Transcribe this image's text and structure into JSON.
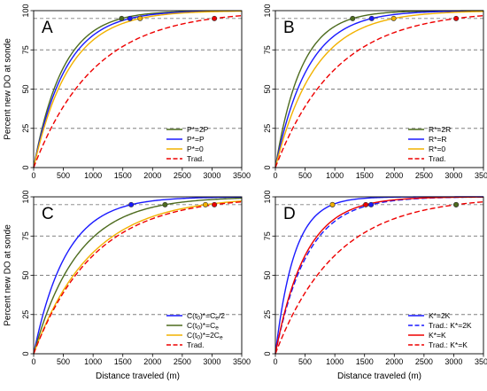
{
  "chart_data": [
    {
      "panel": "A",
      "type": "line",
      "xlabel": "",
      "ylabel": "Percent new DO at sonde",
      "xlim": [
        0,
        3500
      ],
      "ylim": [
        0,
        100
      ],
      "xticks": [
        0,
        500,
        1000,
        1500,
        2000,
        2500,
        3000,
        3500
      ],
      "yticks": [
        0,
        25,
        50,
        75,
        100
      ],
      "hlines": [
        25,
        50,
        75,
        95
      ],
      "grid": false,
      "legend_position": "bottom-right",
      "series": [
        {
          "name": "P*=2P",
          "style": "solid",
          "color": "#4d6b1e",
          "x95": 1480
        },
        {
          "name": "P*=P",
          "style": "solid",
          "color": "#1a1aff",
          "x95": 1620
        },
        {
          "name": "P*=0",
          "style": "solid",
          "color": "#f2b200",
          "x95": 1790
        },
        {
          "name": "Trad.",
          "style": "dashed",
          "color": "#ee0000",
          "x95": 3040
        }
      ]
    },
    {
      "panel": "B",
      "type": "line",
      "xlabel": "",
      "ylabel": "",
      "xlim": [
        0,
        3500
      ],
      "ylim": [
        0,
        100
      ],
      "xticks": [
        0,
        500,
        1000,
        1500,
        2000,
        2500,
        3000,
        3500
      ],
      "yticks": [
        0,
        25,
        50,
        75,
        100
      ],
      "hlines": [
        25,
        50,
        75,
        95
      ],
      "grid": false,
      "legend_position": "bottom-right",
      "series": [
        {
          "name": "R*=2R",
          "style": "solid",
          "color": "#4d6b1e",
          "x95": 1300
        },
        {
          "name": "R*=R",
          "style": "solid",
          "color": "#1a1aff",
          "x95": 1620
        },
        {
          "name": "R*=0",
          "style": "solid",
          "color": "#f2b200",
          "x95": 1990
        },
        {
          "name": "Trad.",
          "style": "dashed",
          "color": "#ee0000",
          "x95": 3040
        }
      ]
    },
    {
      "panel": "C",
      "type": "line",
      "xlabel": "Distance traveled (m)",
      "ylabel": "Percent new DO at sonde",
      "xlim": [
        0,
        3500
      ],
      "ylim": [
        0,
        100
      ],
      "xticks": [
        0,
        500,
        1000,
        1500,
        2000,
        2500,
        3000,
        3500
      ],
      "yticks": [
        0,
        25,
        50,
        75,
        100
      ],
      "hlines": [
        25,
        50,
        75,
        95
      ],
      "grid": false,
      "legend_position": "bottom-right",
      "series": [
        {
          "name": "C(t0)*=Ce/2",
          "legend_parts": [
            "C(t",
            "0",
            ")*=C",
            "e",
            "/2"
          ],
          "style": "solid",
          "color": "#1a1aff",
          "x95": 1640
        },
        {
          "name": "C(t0)*=Ce",
          "legend_parts": [
            "C(t",
            "0",
            ")*=C",
            "e",
            ""
          ],
          "style": "solid",
          "color": "#4d6b1e",
          "x95": 2210
        },
        {
          "name": "C(t0)*=2Ce",
          "legend_parts": [
            "C(t",
            "0",
            ")*=2C",
            "e",
            ""
          ],
          "style": "solid",
          "color": "#f2b200",
          "x95": 2890
        },
        {
          "name": "Trad.",
          "legend_parts": [
            "Trad.",
            "",
            "",
            "",
            ""
          ],
          "style": "dashed",
          "color": "#ee0000",
          "x95": 3040
        }
      ]
    },
    {
      "panel": "D",
      "type": "line",
      "xlabel": "Distance traveled (m)",
      "ylabel": "",
      "xlim": [
        0,
        3500
      ],
      "ylim": [
        0,
        100
      ],
      "xticks": [
        0,
        500,
        1000,
        1500,
        2000,
        2500,
        3000,
        3500
      ],
      "yticks": [
        0,
        25,
        50,
        75,
        100
      ],
      "hlines": [
        25,
        50,
        75,
        95
      ],
      "grid": false,
      "legend_position": "bottom-right",
      "series": [
        {
          "name": "K*=2K",
          "style": "solid",
          "color": "#1a1aff",
          "x95": 960
        },
        {
          "name": "Trad.: K*=2K",
          "style": "dashed",
          "color": "#1a1aff",
          "x95": 1610
        },
        {
          "name": "K*=K",
          "style": "solid",
          "color": "#ee0000",
          "x95": 1520
        },
        {
          "name": "Trad.: K*=K",
          "style": "dashed",
          "color": "#ee0000",
          "x95": 3040
        }
      ],
      "extra_markers": [
        {
          "x95": 960,
          "color": "#f2b200"
        },
        {
          "x95": 3040,
          "color": "#4d6b1e"
        }
      ]
    }
  ]
}
